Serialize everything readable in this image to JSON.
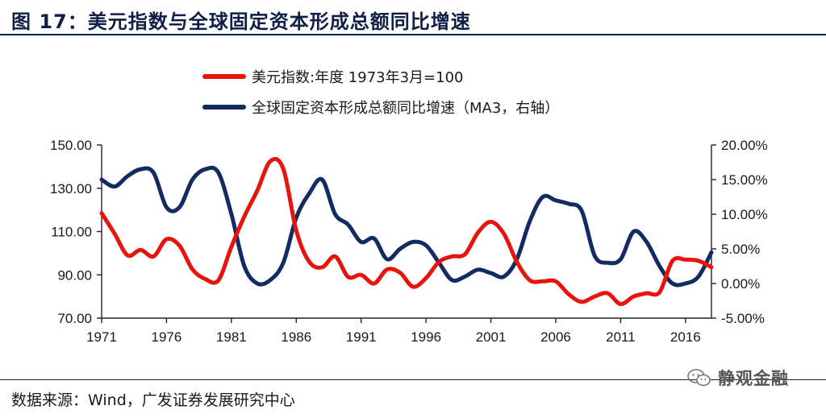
{
  "header": {
    "title": "图 17：美元指数与全球固定资本形成总额同比增速"
  },
  "footer": {
    "source": "数据来源：Wind，广发证券发展研究中心",
    "watermark": "静观金融",
    "watermark_icon": "wechat-icon"
  },
  "chart_data": {
    "type": "line",
    "title": "",
    "colors": {
      "red": "#e8140c",
      "navy": "#132a62"
    },
    "x_axis": {
      "range": [
        1971,
        2018
      ],
      "ticks": [
        1971,
        1976,
        1981,
        1986,
        1991,
        1996,
        2001,
        2006,
        2011,
        2016
      ],
      "tick_labels": [
        "1971",
        "1976",
        "1981",
        "1986",
        "1991",
        "1996",
        "2001",
        "2006",
        "2011",
        "2016"
      ]
    },
    "y_left": {
      "range": [
        70,
        150
      ],
      "ticks": [
        70,
        90,
        110,
        130,
        150
      ],
      "tick_labels": [
        "70.00",
        "90.00",
        "110.00",
        "130.00",
        "150.00"
      ]
    },
    "y_right": {
      "range": [
        -5,
        20
      ],
      "ticks": [
        -5,
        0,
        5,
        10,
        15,
        20
      ],
      "tick_labels": [
        "-5.00%",
        "0.00%",
        "5.00%",
        "10.00%",
        "15.00%",
        "20.00%"
      ]
    },
    "legend": {
      "placement": "top-center"
    },
    "series": [
      {
        "name": "美元指数:年度 1973年3月=100",
        "axis": "left",
        "color": "#e8140c",
        "x": [
          1971,
          1972,
          1973,
          1974,
          1975,
          1976,
          1977,
          1978,
          1979,
          1980,
          1981,
          1982,
          1983,
          1984,
          1985,
          1986,
          1987,
          1988,
          1989,
          1990,
          1991,
          1992,
          1993,
          1994,
          1995,
          1996,
          1997,
          1998,
          1999,
          2000,
          2001,
          2002,
          2003,
          2004,
          2005,
          2006,
          2007,
          2008,
          2009,
          2010,
          2011,
          2012,
          2013,
          2014,
          2015,
          2016,
          2017,
          2018
        ],
        "y": [
          118.5,
          109,
          99,
          101.5,
          98.5,
          106.5,
          103.5,
          92.5,
          88,
          87.5,
          103,
          117,
          129,
          142.5,
          139,
          110.5,
          96,
          93.5,
          98.5,
          89,
          90,
          86,
          92.5,
          91,
          84.5,
          88.5,
          96,
          98.5,
          99.5,
          109.5,
          114.5,
          109,
          96,
          87.5,
          87,
          87,
          81,
          77.5,
          80,
          81.5,
          76.5,
          80,
          81.5,
          82,
          96.5,
          97,
          96.5,
          93.5
        ]
      },
      {
        "name": "全球固定资本形成总额同比增速（MA3，右轴）",
        "axis": "right",
        "color": "#132a62",
        "x": [
          1971,
          1972,
          1973,
          1974,
          1975,
          1976,
          1977,
          1978,
          1979,
          1980,
          1981,
          1982,
          1983,
          1984,
          1985,
          1986,
          1987,
          1988,
          1989,
          1990,
          1991,
          1992,
          1993,
          1994,
          1995,
          1996,
          1997,
          1998,
          1999,
          2000,
          2001,
          2002,
          2003,
          2004,
          2005,
          2006,
          2007,
          2008,
          2009,
          2010,
          2011,
          2012,
          2013,
          2014,
          2015,
          2016,
          2017,
          2018
        ],
        "y": [
          15,
          14,
          15.5,
          16.5,
          16,
          11,
          11,
          15,
          16.5,
          16,
          10,
          2.5,
          0,
          0.5,
          3,
          9.5,
          13,
          15,
          10,
          8.5,
          6,
          6.5,
          3.5,
          5,
          6,
          5.5,
          3,
          0.5,
          1,
          2,
          1.5,
          1,
          3.5,
          9,
          12.5,
          12,
          11.5,
          10.5,
          4,
          3,
          3.5,
          7.5,
          6,
          2.5,
          0,
          0,
          1,
          4.5
        ]
      }
    ]
  }
}
